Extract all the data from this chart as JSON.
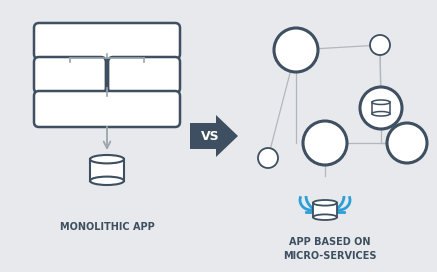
{
  "bg_color": "#e8e9ec",
  "box_color": "white",
  "box_edge_color": "#3d4f60",
  "connector_color": "#9ba5ae",
  "arrow_color": "#9ba5ae",
  "db_color": "#3d4f60",
  "circle_color": "#3d4f60",
  "circle_large_lw": 2.2,
  "circle_small_lw": 1.5,
  "line_color": "#b0b8bf",
  "cloud_color": "#2d9fd8",
  "vs_bg": "#3d4f60",
  "vs_text": "VS",
  "vs_fontsize": 9,
  "left_label": "MONOLITHIC APP",
  "right_label": "APP BASED ON\nMICRO-SERVICES",
  "label_fontsize": 7.0,
  "label_color": "#3d4f60",
  "label_weight": "bold",
  "figw": 4.37,
  "figh": 2.72,
  "dpi": 100
}
